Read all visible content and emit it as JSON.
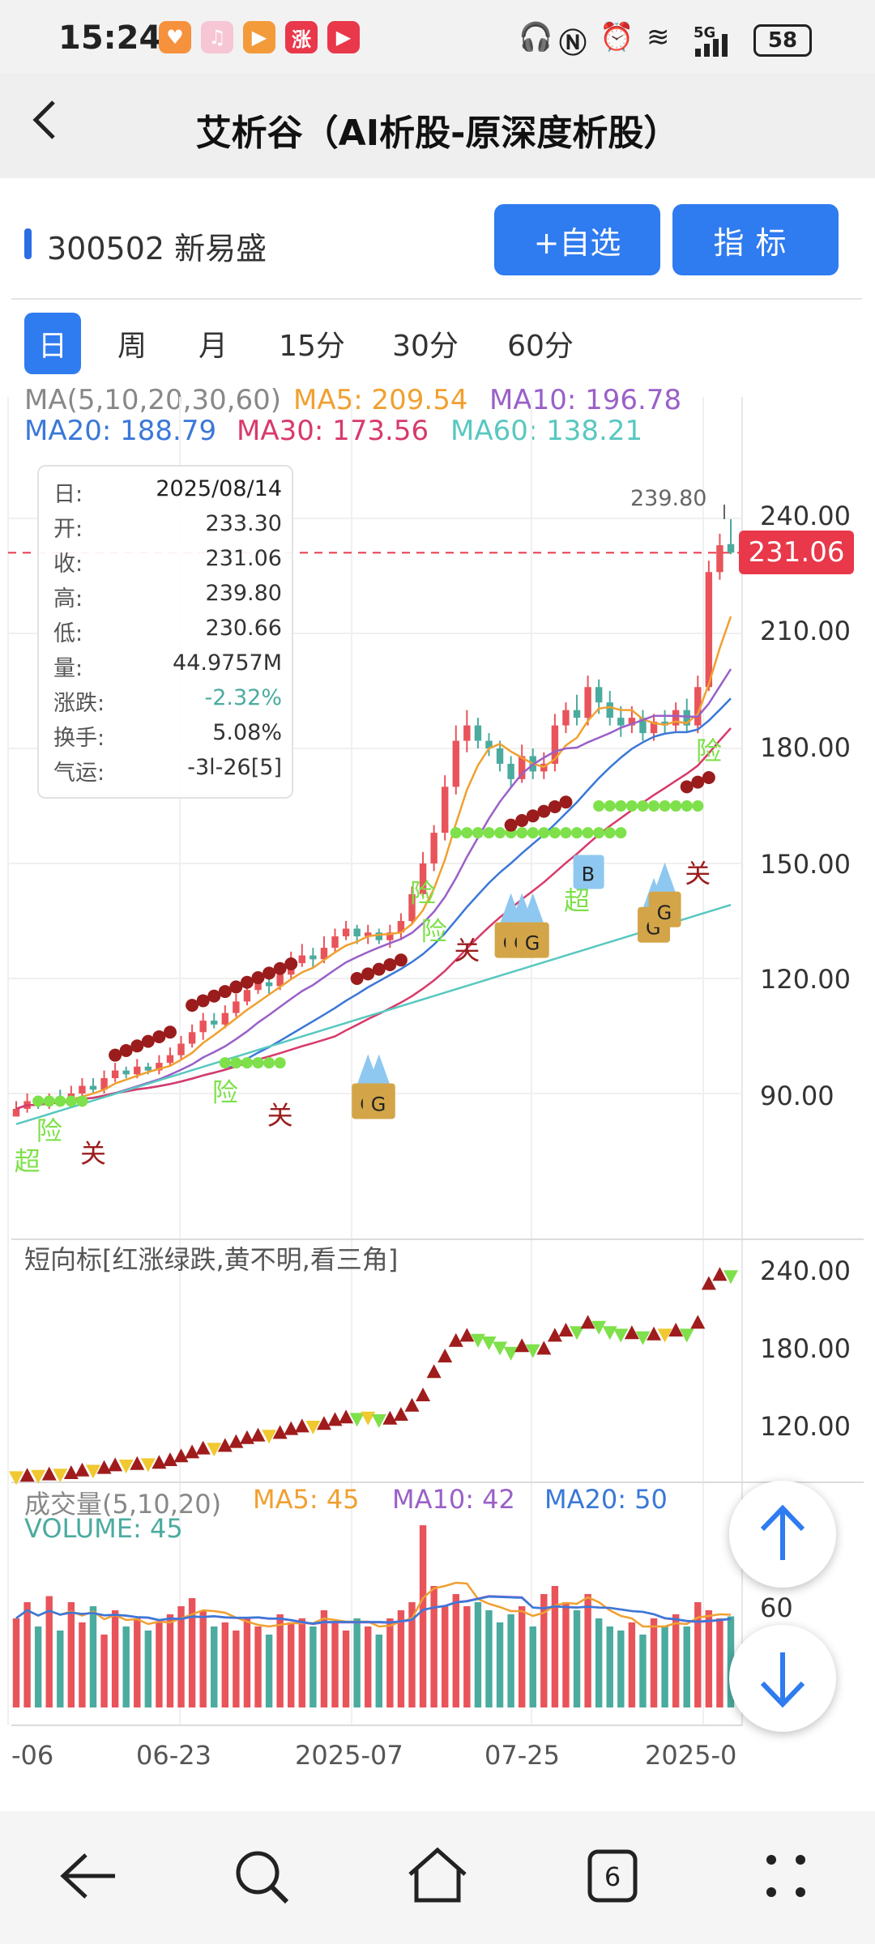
{
  "status": {
    "time": "15:24",
    "app_icons": [
      {
        "name": "app-heart-icon",
        "glyph": "♥",
        "color": "#f6913d"
      },
      {
        "name": "app-music-icon",
        "glyph": "♫",
        "color": "#f7c6d4"
      },
      {
        "name": "app-play-icon",
        "glyph": "▶",
        "color": "#f39b3a"
      },
      {
        "name": "app-zhang-icon",
        "glyph": "涨",
        "color": "#e8384a"
      },
      {
        "name": "app-video-icon",
        "glyph": "▶",
        "color": "#e8384a"
      }
    ],
    "net_label": "5G",
    "battery": "58"
  },
  "header": {
    "back_glyph": "‹",
    "title": "艾析谷（AI析股-原深度析股）"
  },
  "stock": {
    "name": "300502 新易盛",
    "btn_watch": "+自选",
    "btn_indicator": "指标"
  },
  "tabs": [
    "日",
    "周",
    "月",
    "15分",
    "30分",
    "60分"
  ],
  "ma_legend": {
    "title": "MA(5,10,20,30,60)",
    "ma5": "MA5: 209.54",
    "ma10": "MA10: 196.78",
    "ma20": "MA20: 188.79",
    "ma30": "MA30: 173.56",
    "ma60": "MA60: 138.21"
  },
  "tooltip": [
    {
      "k": "日:",
      "v": "2025/08/14"
    },
    {
      "k": "开:",
      "v": "233.30"
    },
    {
      "k": "收:",
      "v": "231.06"
    },
    {
      "k": "高:",
      "v": "239.80"
    },
    {
      "k": "低:",
      "v": "230.66"
    },
    {
      "k": "量:",
      "v": "44.9757M"
    },
    {
      "k": "涨跌:",
      "v": "-2.32%"
    },
    {
      "k": "换手:",
      "v": "5.08%"
    },
    {
      "k": "气运:",
      "v": "-3l-26[5]"
    }
  ],
  "price_tag": "231.06",
  "high_label": "239.80",
  "price_axis": [
    "240.00",
    "210.00",
    "180.00",
    "150.00",
    "120.00",
    "90.00"
  ],
  "signals": [
    "超",
    "险",
    "关",
    "险",
    "关",
    "险",
    "险",
    "关",
    "超",
    "险",
    "关",
    "G",
    "B"
  ],
  "short_indicator": {
    "title": "短向标[红涨绿跌,黄不明,看三角]",
    "axis": [
      "240.00",
      "180.00",
      "120.00"
    ]
  },
  "volume": {
    "title": "成交量(5,10,20)",
    "ma5": "MA5: 45",
    "ma10": "MA10: 42",
    "ma20": "MA20: 50",
    "volume": "VOLUME: 45",
    "axis": "60"
  },
  "x_axis": [
    "-06",
    "06-23",
    "2025-07",
    "07-25",
    "2025-0"
  ],
  "colors": {
    "up": "#e8545a",
    "down": "#4bab9f",
    "ma5": "#f0a030",
    "ma10": "#9a60c8",
    "ma20": "#3a78d8",
    "ma30": "#d83a6a",
    "ma60": "#58c8c0",
    "accent": "#2f7bf0"
  },
  "chart_data": {
    "type": "candlestick",
    "series_candles": [
      [
        84,
        86,
        84,
        88
      ],
      [
        86,
        88,
        85,
        90
      ],
      [
        88,
        87,
        86,
        89
      ],
      [
        87,
        89,
        86,
        90
      ],
      [
        89,
        88,
        87,
        91
      ],
      [
        88,
        90,
        87,
        92
      ],
      [
        90,
        92,
        89,
        94
      ],
      [
        92,
        91,
        90,
        94
      ],
      [
        91,
        94,
        90,
        96
      ],
      [
        94,
        96,
        93,
        98
      ],
      [
        96,
        95,
        94,
        97
      ],
      [
        95,
        97,
        94,
        99
      ],
      [
        97,
        96,
        95,
        98
      ],
      [
        96,
        98,
        95,
        100
      ],
      [
        98,
        100,
        97,
        102
      ],
      [
        100,
        103,
        99,
        105
      ],
      [
        103,
        106,
        102,
        108
      ],
      [
        106,
        109,
        104,
        111
      ],
      [
        109,
        108,
        107,
        111
      ],
      [
        108,
        111,
        107,
        113
      ],
      [
        111,
        114,
        110,
        116
      ],
      [
        114,
        117,
        113,
        120
      ],
      [
        117,
        119,
        116,
        121
      ],
      [
        119,
        118,
        116,
        121
      ],
      [
        118,
        121,
        117,
        124
      ],
      [
        121,
        124,
        120,
        127
      ],
      [
        124,
        126,
        123,
        129
      ],
      [
        126,
        125,
        123,
        128
      ],
      [
        125,
        128,
        124,
        131
      ],
      [
        128,
        131,
        127,
        133
      ],
      [
        131,
        133,
        130,
        135
      ],
      [
        133,
        131,
        129,
        134
      ],
      [
        131,
        132,
        129,
        134
      ],
      [
        132,
        130,
        129,
        133
      ],
      [
        130,
        132,
        128,
        134
      ],
      [
        132,
        135,
        130,
        137
      ],
      [
        135,
        142,
        134,
        144
      ],
      [
        142,
        150,
        141,
        153
      ],
      [
        150,
        158,
        148,
        160
      ],
      [
        158,
        170,
        156,
        173
      ],
      [
        170,
        182,
        168,
        186
      ],
      [
        182,
        186,
        179,
        190
      ],
      [
        186,
        182,
        180,
        188
      ],
      [
        182,
        180,
        178,
        184
      ],
      [
        180,
        176,
        174,
        182
      ],
      [
        176,
        172,
        170,
        178
      ],
      [
        172,
        178,
        171,
        181
      ],
      [
        178,
        174,
        172,
        180
      ],
      [
        174,
        176,
        172,
        179
      ],
      [
        176,
        186,
        174,
        189
      ],
      [
        186,
        190,
        184,
        192
      ],
      [
        190,
        188,
        186,
        194
      ],
      [
        188,
        196,
        186,
        199
      ],
      [
        196,
        192,
        189,
        198
      ],
      [
        192,
        188,
        186,
        195
      ],
      [
        188,
        186,
        183,
        191
      ],
      [
        186,
        188,
        184,
        191
      ],
      [
        188,
        184,
        182,
        190
      ],
      [
        184,
        187,
        182,
        189
      ],
      [
        187,
        186,
        184,
        190
      ],
      [
        186,
        190,
        184,
        192
      ],
      [
        190,
        186,
        184,
        193
      ],
      [
        186,
        196,
        184,
        199
      ],
      [
        196,
        226,
        195,
        229
      ],
      [
        226,
        233,
        224,
        236
      ],
      [
        233.3,
        231.06,
        230.66,
        239.8
      ]
    ],
    "ylim": [
      75,
      250
    ],
    "y_ticks": [
      240,
      210,
      180,
      150,
      120,
      90
    ]
  }
}
